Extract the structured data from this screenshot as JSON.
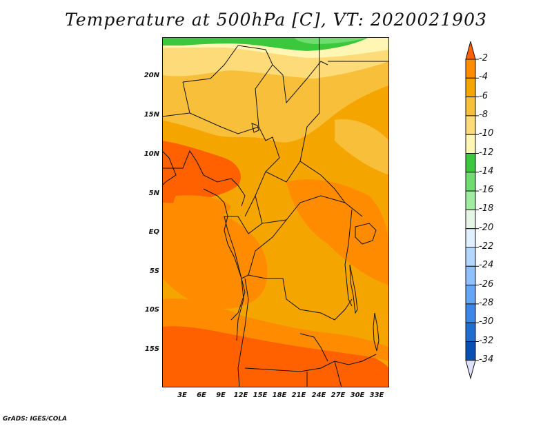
{
  "title": "Temperature at 500hPa [C], VT: 2020021903",
  "credit": "GrADS: IGES/COLA",
  "lat_labels": [
    "20N",
    "15N",
    "10N",
    "5N",
    "EQ",
    "5S",
    "10S",
    "15S"
  ],
  "lon_labels": [
    "3E",
    "6E",
    "9E",
    "12E",
    "15E",
    "18E",
    "21E",
    "24E",
    "27E",
    "30E",
    "33E"
  ],
  "colorbar": {
    "labels": [
      "-2",
      "-4",
      "-6",
      "-8",
      "-10",
      "-12",
      "-14",
      "-16",
      "-18",
      "-20",
      "-22",
      "-24",
      "-26",
      "-28",
      "-30",
      "-32",
      "-34"
    ],
    "colors": [
      "#ff6000",
      "#ff8c00",
      "#f5a500",
      "#f8bf3a",
      "#fddb78",
      "#fff6b4",
      "#3cc83c",
      "#6edc6e",
      "#a0eca0",
      "#e6f6e6",
      "#e0f0ff",
      "#b4d7ff",
      "#90c1ff",
      "#64a5f5",
      "#3c86ea",
      "#1e6ed2",
      "#0a50b4",
      "#0a1e6e",
      "#e0e0ff"
    ]
  },
  "map": {
    "background_color": "#f5a500",
    "regions": [
      {
        "name": "warm-core-west",
        "color": "#ff6000"
      },
      {
        "name": "warm-south",
        "color": "#ff6000"
      },
      {
        "name": "cool-north-band",
        "color": "#fddb78"
      },
      {
        "name": "cooler-north",
        "color": "#fff6b4"
      },
      {
        "name": "cold-north-edge",
        "color": "#3cc83c"
      }
    ]
  }
}
